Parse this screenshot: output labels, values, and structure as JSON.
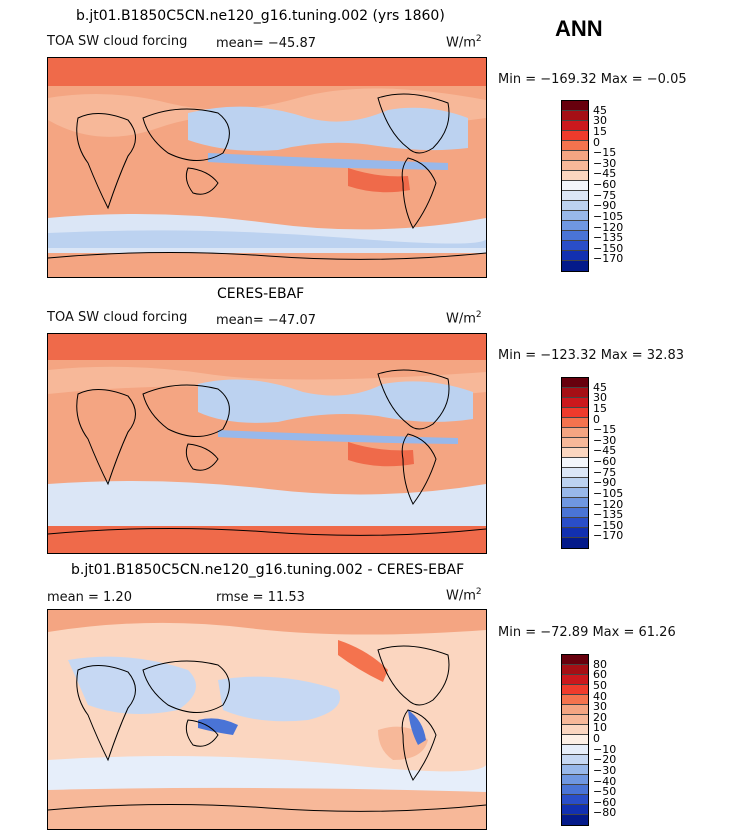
{
  "season": "ANN",
  "panels": [
    {
      "title": "b.jt01.B1850C5CN.ne120_g16.tuning.002 (yrs 1860)",
      "variable": "TOA SW cloud forcing",
      "stat": "mean= −45.87",
      "units": "W/m",
      "units_sup": "2",
      "minmax": "Min = −169.32 Max =  −0.05",
      "colorbar": {
        "colors": [
          "#67000d",
          "#a50f15",
          "#cb181d",
          "#ef3b2c",
          "#f4734e",
          "#f4a582",
          "#f7b899",
          "#fbd6c0",
          "#f3f6fb",
          "#dbe6f6",
          "#bcd2f0",
          "#98b8ea",
          "#6f97e1",
          "#4a74d6",
          "#2a4ec8",
          "#1230b0",
          "#041a8a"
        ],
        "ticks": [
          "45",
          "30",
          "15",
          "0",
          "−15",
          "−30",
          "−45",
          "−60",
          "−75",
          "−90",
          "−105",
          "−120",
          "−135",
          "−150",
          "−170"
        ]
      }
    },
    {
      "title": "CERES-EBAF",
      "variable": "TOA SW cloud forcing",
      "stat": "mean= −47.07",
      "units": "W/m",
      "units_sup": "2",
      "minmax": "Min = −123.32 Max =   32.83",
      "colorbar": {
        "colors": [
          "#67000d",
          "#a50f15",
          "#cb181d",
          "#ef3b2c",
          "#f4734e",
          "#f4a582",
          "#f7b899",
          "#fbd6c0",
          "#f3f6fb",
          "#dbe6f6",
          "#bcd2f0",
          "#98b8ea",
          "#6f97e1",
          "#4a74d6",
          "#2a4ec8",
          "#1230b0",
          "#041a8a"
        ],
        "ticks": [
          "45",
          "30",
          "15",
          "0",
          "−15",
          "−30",
          "−45",
          "−60",
          "−75",
          "−90",
          "−105",
          "−120",
          "−135",
          "−150",
          "−170"
        ]
      }
    },
    {
      "title": "b.jt01.B1850C5CN.ne120_g16.tuning.002 - CERES-EBAF",
      "stat": "mean =    1.20",
      "stat2": "rmse =   11.53",
      "units": "W/m",
      "units_sup": "2",
      "minmax": "Min = −72.89 Max =  61.26",
      "colorbar": {
        "colors": [
          "#67000d",
          "#a50f15",
          "#cb181d",
          "#ef3b2c",
          "#f4734e",
          "#f4a582",
          "#f7b899",
          "#fbd6c0",
          "#fdf0e6",
          "#e6eefa",
          "#c6d8f3",
          "#98b8ea",
          "#6f97e1",
          "#4a74d6",
          "#2a4ec8",
          "#1230b0",
          "#041a8a"
        ],
        "ticks": [
          "80",
          "60",
          "50",
          "40",
          "30",
          "20",
          "10",
          "0",
          "−10",
          "−20",
          "−30",
          "−40",
          "−50",
          "−60",
          "−80"
        ]
      }
    }
  ]
}
